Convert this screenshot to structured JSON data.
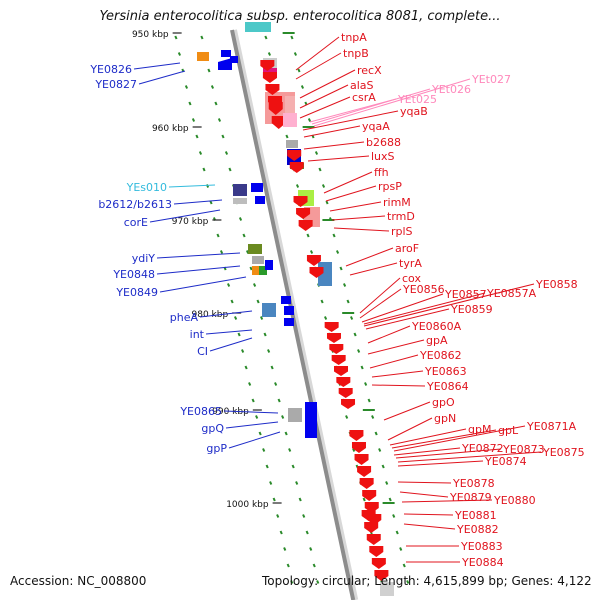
{
  "title": "Yersinia enterocolitica subsp. enterocolitica 8081, complete...",
  "footer": {
    "accession": "Accession: NC_008800",
    "stats": "Topology: circular; Length: 4,615,899 bp; Genes: 4,122"
  },
  "colors": {
    "backbone": "#8c8c8c",
    "tick": "#2a8a2a",
    "label_left": "#1e2cc8",
    "label_right": "#e0141e",
    "label_cyan": "#33bbdd",
    "label_pink": "#ff88bb"
  },
  "scale_labels": [
    "950 kbp",
    "960 kbp",
    "970 kbp",
    "980 kbp",
    "990 kbp",
    "1000 kbp"
  ],
  "left_labels": [
    {
      "text": "YE0826",
      "color": "blue"
    },
    {
      "text": "YE0827",
      "color": "blue"
    },
    {
      "text": "YEs010",
      "color": "cyan"
    },
    {
      "text": "b2612/b2613",
      "color": "blue"
    },
    {
      "text": "corE",
      "color": "blue"
    },
    {
      "text": "ydiY",
      "color": "blue"
    },
    {
      "text": "YE0848",
      "color": "blue"
    },
    {
      "text": "YE0849",
      "color": "blue"
    },
    {
      "text": "pheA",
      "color": "blue"
    },
    {
      "text": "int",
      "color": "blue"
    },
    {
      "text": "CI",
      "color": "blue"
    },
    {
      "text": "YE0865",
      "color": "blue"
    },
    {
      "text": "gpQ",
      "color": "blue"
    },
    {
      "text": "gpP",
      "color": "blue"
    }
  ],
  "right_labels": [
    {
      "text": "tnpA",
      "color": "red"
    },
    {
      "text": "tnpB",
      "color": "red"
    },
    {
      "text": "recX",
      "color": "red"
    },
    {
      "text": "alaS",
      "color": "red"
    },
    {
      "text": "csrA",
      "color": "red"
    },
    {
      "text": "YEt025",
      "color": "pink"
    },
    {
      "text": "YEt026",
      "color": "pink"
    },
    {
      "text": "YEt027",
      "color": "pink"
    },
    {
      "text": "yqaB",
      "color": "red"
    },
    {
      "text": "yqaA",
      "color": "red"
    },
    {
      "text": "b2688",
      "color": "red"
    },
    {
      "text": "luxS",
      "color": "red"
    },
    {
      "text": "ffh",
      "color": "red"
    },
    {
      "text": "rpsP",
      "color": "red"
    },
    {
      "text": "rimM",
      "color": "red"
    },
    {
      "text": "trmD",
      "color": "red"
    },
    {
      "text": "rplS",
      "color": "red"
    },
    {
      "text": "aroF",
      "color": "red"
    },
    {
      "text": "tyrA",
      "color": "red"
    },
    {
      "text": "cox",
      "color": "red"
    },
    {
      "text": "YE0856",
      "color": "red"
    },
    {
      "text": "YE0857",
      "color": "red"
    },
    {
      "text": "YE0857A",
      "color": "red"
    },
    {
      "text": "YE0858",
      "color": "red"
    },
    {
      "text": "YE0859",
      "color": "red"
    },
    {
      "text": "YE0860A",
      "color": "red"
    },
    {
      "text": "gpA",
      "color": "red"
    },
    {
      "text": "YE0862",
      "color": "red"
    },
    {
      "text": "YE0863",
      "color": "red"
    },
    {
      "text": "YE0864",
      "color": "red"
    },
    {
      "text": "gpO",
      "color": "red"
    },
    {
      "text": "gpN",
      "color": "red"
    },
    {
      "text": "gpM",
      "color": "red"
    },
    {
      "text": "gpL",
      "color": "red"
    },
    {
      "text": "YE0871A",
      "color": "red"
    },
    {
      "text": "YE0872",
      "color": "red"
    },
    {
      "text": "YE0873",
      "color": "red"
    },
    {
      "text": "YE0875",
      "color": "red"
    },
    {
      "text": "YE0874",
      "color": "red"
    },
    {
      "text": "YE0878",
      "color": "red"
    },
    {
      "text": "YE0879",
      "color": "red"
    },
    {
      "text": "YE0880",
      "color": "red"
    },
    {
      "text": "YE0881",
      "color": "red"
    },
    {
      "text": "YE0882",
      "color": "red"
    },
    {
      "text": "YE0883",
      "color": "red"
    },
    {
      "text": "YE0884",
      "color": "red"
    }
  ]
}
